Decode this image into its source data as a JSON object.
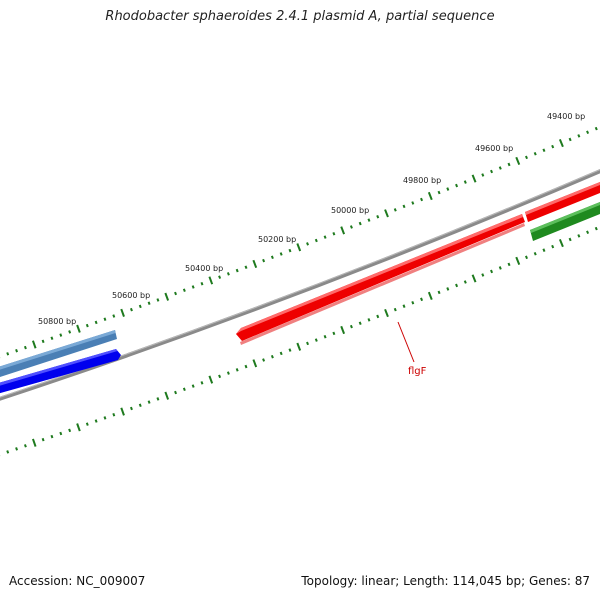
{
  "title": "Rhodobacter sphaeroides 2.4.1 plasmid A, partial sequence",
  "footer": {
    "accession": "Accession: NC_009007",
    "summary": "Topology: linear; Length: 114,045 bp; Genes: 87"
  },
  "colors": {
    "backbone": "#808080",
    "tick": "#1e7a1e",
    "gene_label": "#cc0000"
  },
  "scale_labels": [
    "49400 bp",
    "49600 bp",
    "49800 bp",
    "50000 bp",
    "50200 bp",
    "50400 bp",
    "50600 bp",
    "50800 bp"
  ],
  "features": [
    {
      "name": "",
      "strand": "forward",
      "color": "#4682b4"
    },
    {
      "name": "",
      "strand": "reverse",
      "color": "#0000ff"
    },
    {
      "name": "flgF",
      "strand": "forward",
      "color": "#ff0000"
    },
    {
      "name": "",
      "strand": "forward",
      "color": "#ff0000"
    },
    {
      "name": "",
      "strand": "reverse",
      "color": "#228b22"
    }
  ]
}
